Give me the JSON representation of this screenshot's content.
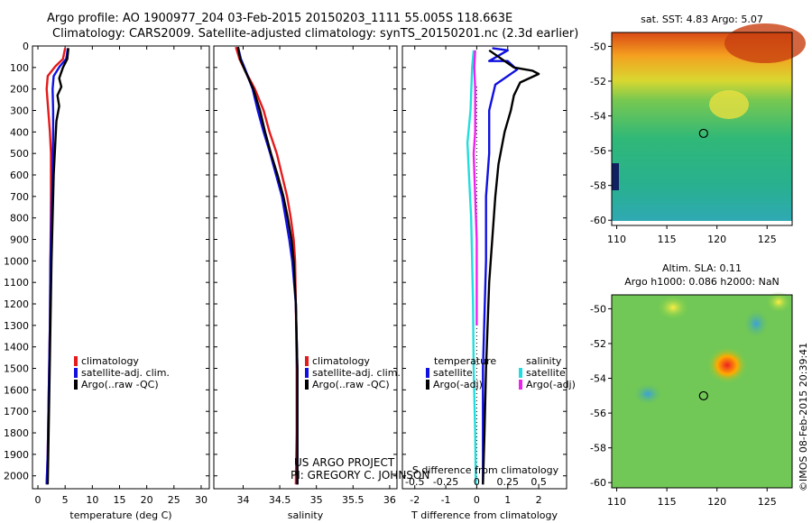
{
  "header": {
    "line1": "Argo profile: AO 1900977_204 03-Feb-2015 20150203_1111 55.005S 118.663E",
    "line2": "Climatology: CARS2009. Satellite-adjusted climatology: synTS_20150201.nc (2.3d earlier)"
  },
  "credit": "©IMOS 08-Feb-2015 20:39:41",
  "project": {
    "line1": "US ARGO PROJECT",
    "line2": "PI: GREGORY C. JOHNSON"
  },
  "colors": {
    "climatology": "#e41a1c",
    "satellite": "#1010e0",
    "argo": "#000000",
    "sat_salinity": "#22dddd",
    "argo_salinity": "#ee22ee"
  },
  "chart_data": [
    {
      "id": "temperature",
      "type": "line",
      "xlabel": "temperature (deg C)",
      "xlim": [
        -1,
        31.5
      ],
      "ylim": [
        0,
        2060
      ],
      "xticks": [
        "0",
        "5",
        "10",
        "15",
        "20",
        "25",
        "30"
      ],
      "yticks": [
        "0",
        "100",
        "200",
        "300",
        "400",
        "500",
        "600",
        "700",
        "800",
        "900",
        "1000",
        "1100",
        "1200",
        "1300",
        "1400",
        "1500",
        "1600",
        "1700",
        "1800",
        "1900",
        "2000"
      ],
      "legend": [
        "climatology",
        "satellite-adj. clim.",
        "Argo(..raw -QC)"
      ],
      "series": [
        {
          "name": "climatology",
          "color": "#e41a1c",
          "points": [
            [
              5.0,
              10
            ],
            [
              4.6,
              60
            ],
            [
              3.2,
              95
            ],
            [
              1.8,
              140
            ],
            [
              1.6,
              200
            ],
            [
              1.9,
              300
            ],
            [
              2.2,
              400
            ],
            [
              2.4,
              500
            ],
            [
              2.4,
              700
            ],
            [
              2.3,
              1000
            ],
            [
              2.2,
              1300
            ],
            [
              2.0,
              1600
            ],
            [
              1.8,
              1900
            ],
            [
              1.6,
              2040
            ]
          ]
        },
        {
          "name": "satellite-adj. clim.",
          "color": "#1010e0",
          "points": [
            [
              5.5,
              10
            ],
            [
              5.2,
              60
            ],
            [
              4.0,
              95
            ],
            [
              2.9,
              140
            ],
            [
              2.7,
              200
            ],
            [
              2.8,
              300
            ],
            [
              2.8,
              400
            ],
            [
              2.7,
              600
            ],
            [
              2.5,
              800
            ],
            [
              2.3,
              1000
            ],
            [
              2.2,
              1300
            ],
            [
              2.0,
              1600
            ],
            [
              1.8,
              1900
            ],
            [
              1.6,
              2040
            ]
          ]
        },
        {
          "name": "Argo(..raw -QC)",
          "color": "#000000",
          "points": [
            [
              5.6,
              10
            ],
            [
              5.4,
              60
            ],
            [
              4.6,
              100
            ],
            [
              3.9,
              150
            ],
            [
              4.3,
              190
            ],
            [
              3.6,
              230
            ],
            [
              3.9,
              280
            ],
            [
              3.4,
              350
            ],
            [
              3.2,
              450
            ],
            [
              2.9,
              600
            ],
            [
              2.7,
              800
            ],
            [
              2.5,
              1000
            ],
            [
              2.3,
              1300
            ],
            [
              2.1,
              1600
            ],
            [
              1.9,
              1900
            ],
            [
              1.8,
              2040
            ]
          ]
        }
      ]
    },
    {
      "id": "salinity",
      "type": "line",
      "xlabel": "salinity",
      "xlim": [
        33.6,
        36.1
      ],
      "ylim": [
        0,
        2060
      ],
      "xticks": [
        "34",
        "34.5",
        "35",
        "35.5",
        "36"
      ],
      "legend": [
        "climatology",
        "satellite-adj. clim.",
        "Argo(..raw -QC)"
      ],
      "series": [
        {
          "name": "climatology",
          "color": "#e41a1c",
          "points": [
            [
              33.9,
              5
            ],
            [
              33.95,
              60
            ],
            [
              34.02,
              110
            ],
            [
              34.16,
              200
            ],
            [
              34.28,
              300
            ],
            [
              34.36,
              400
            ],
            [
              34.46,
              500
            ],
            [
              34.53,
              600
            ],
            [
              34.6,
              700
            ],
            [
              34.65,
              800
            ],
            [
              34.69,
              900
            ],
            [
              34.71,
              1000
            ],
            [
              34.72,
              1200
            ],
            [
              34.73,
              1500
            ],
            [
              34.73,
              1800
            ],
            [
              34.72,
              2040
            ]
          ]
        },
        {
          "name": "satellite-adj. clim.",
          "color": "#1010e0",
          "points": [
            [
              33.93,
              5
            ],
            [
              33.97,
              60
            ],
            [
              34.03,
              110
            ],
            [
              34.13,
              200
            ],
            [
              34.2,
              300
            ],
            [
              34.28,
              400
            ],
            [
              34.37,
              500
            ],
            [
              34.45,
              600
            ],
            [
              34.53,
              700
            ],
            [
              34.58,
              800
            ],
            [
              34.63,
              900
            ],
            [
              34.67,
              1000
            ],
            [
              34.72,
              1200
            ],
            [
              34.74,
              1500
            ],
            [
              34.74,
              1800
            ],
            [
              34.74,
              2040
            ]
          ]
        },
        {
          "name": "Argo(..raw -QC)",
          "color": "#000000",
          "points": [
            [
              33.93,
              5
            ],
            [
              33.96,
              60
            ],
            [
              34.02,
              110
            ],
            [
              34.14,
              200
            ],
            [
              34.23,
              300
            ],
            [
              34.3,
              400
            ],
            [
              34.38,
              500
            ],
            [
              34.47,
              600
            ],
            [
              34.55,
              700
            ],
            [
              34.61,
              800
            ],
            [
              34.66,
              900
            ],
            [
              34.69,
              1000
            ],
            [
              34.72,
              1200
            ],
            [
              34.74,
              1500
            ],
            [
              34.74,
              1800
            ],
            [
              34.74,
              2040
            ]
          ]
        }
      ]
    },
    {
      "id": "difference",
      "type": "line",
      "xlabel": "T difference from climatology",
      "x2label": "S difference from climatology",
      "xlim": [
        -2.4,
        2.9
      ],
      "ylim": [
        0,
        2060
      ],
      "xticks": [
        "-2",
        "-1",
        "0",
        "1",
        "2"
      ],
      "x2ticks": [
        "-0.5",
        "-0.25",
        "0",
        "0.25",
        "0.5"
      ],
      "legend_headers": [
        "temperature",
        "salinity"
      ],
      "legend": [
        "satellite",
        "Argo(-adj)",
        "satellite",
        "Argo(-adj)"
      ],
      "series": [
        {
          "name": "satellite",
          "group": "temperature",
          "color": "#1010e0",
          "points": [
            [
              0.5,
              10
            ],
            [
              1.0,
              20
            ],
            [
              0.4,
              70
            ],
            [
              1.0,
              70
            ],
            [
              1.3,
              110
            ],
            [
              0.6,
              180
            ],
            [
              0.4,
              300
            ],
            [
              0.4,
              500
            ],
            [
              0.3,
              700
            ],
            [
              0.3,
              1000
            ],
            [
              0.2,
              1500
            ],
            [
              0.2,
              2040
            ]
          ]
        },
        {
          "name": "Argo(-adj)",
          "group": "temperature",
          "color": "#000000",
          "points": [
            [
              0.4,
              20
            ],
            [
              0.9,
              70
            ],
            [
              1.2,
              100
            ],
            [
              1.8,
              115
            ],
            [
              2.0,
              130
            ],
            [
              1.4,
              170
            ],
            [
              1.2,
              230
            ],
            [
              1.1,
              300
            ],
            [
              0.9,
              400
            ],
            [
              0.7,
              550
            ],
            [
              0.6,
              700
            ],
            [
              0.5,
              900
            ],
            [
              0.4,
              1100
            ],
            [
              0.3,
              1500
            ],
            [
              0.25,
              1800
            ],
            [
              0.2,
              2040
            ]
          ]
        },
        {
          "name": "satellite",
          "group": "salinity",
          "color": "#22dddd",
          "points": [
            [
              -0.1,
              20
            ],
            [
              -0.15,
              100
            ],
            [
              -0.2,
              300
            ],
            [
              -0.3,
              450
            ],
            [
              -0.25,
              600
            ],
            [
              -0.18,
              800
            ],
            [
              -0.15,
              1000
            ],
            [
              -0.12,
              1200
            ],
            [
              -0.1,
              1500
            ],
            [
              -0.05,
              1800
            ],
            [
              -0.03,
              2040
            ]
          ]
        },
        {
          "name": "Argo(-adj)",
          "group": "salinity",
          "color": "#ee22ee",
          "points": [
            [
              -0.05,
              20
            ],
            [
              -0.08,
              100
            ],
            [
              -0.05,
              200
            ],
            [
              -0.05,
              400
            ],
            [
              -0.1,
              500
            ],
            [
              -0.05,
              700
            ],
            [
              0.0,
              900
            ],
            [
              0.0,
              1100
            ],
            [
              0.0,
              1300
            ]
          ]
        }
      ]
    },
    {
      "id": "sst-map",
      "type": "heatmap",
      "title": "sat. SST: 4.83  Argo: 5.07",
      "xticks": [
        "110",
        "115",
        "120",
        "125"
      ],
      "yticks": [
        "-50",
        "-52",
        "-54",
        "-56",
        "-58",
        "-60"
      ],
      "xlim": [
        109.5,
        127.5
      ],
      "ylim": [
        -60.3,
        -49.2
      ],
      "marker": {
        "lon": 118.663,
        "lat": -55.005
      }
    },
    {
      "id": "sla-map",
      "type": "heatmap",
      "title": "Altim. SLA: 0.11",
      "subtitle": "Argo h1000: 0.086 h2000: NaN",
      "xticks": [
        "110",
        "115",
        "120",
        "125"
      ],
      "yticks": [
        "-50",
        "-52",
        "-54",
        "-56",
        "-58",
        "-60"
      ],
      "xlim": [
        109.5,
        127.5
      ],
      "ylim": [
        -60.3,
        -49.2
      ],
      "marker": {
        "lon": 118.663,
        "lat": -55.005
      }
    }
  ]
}
